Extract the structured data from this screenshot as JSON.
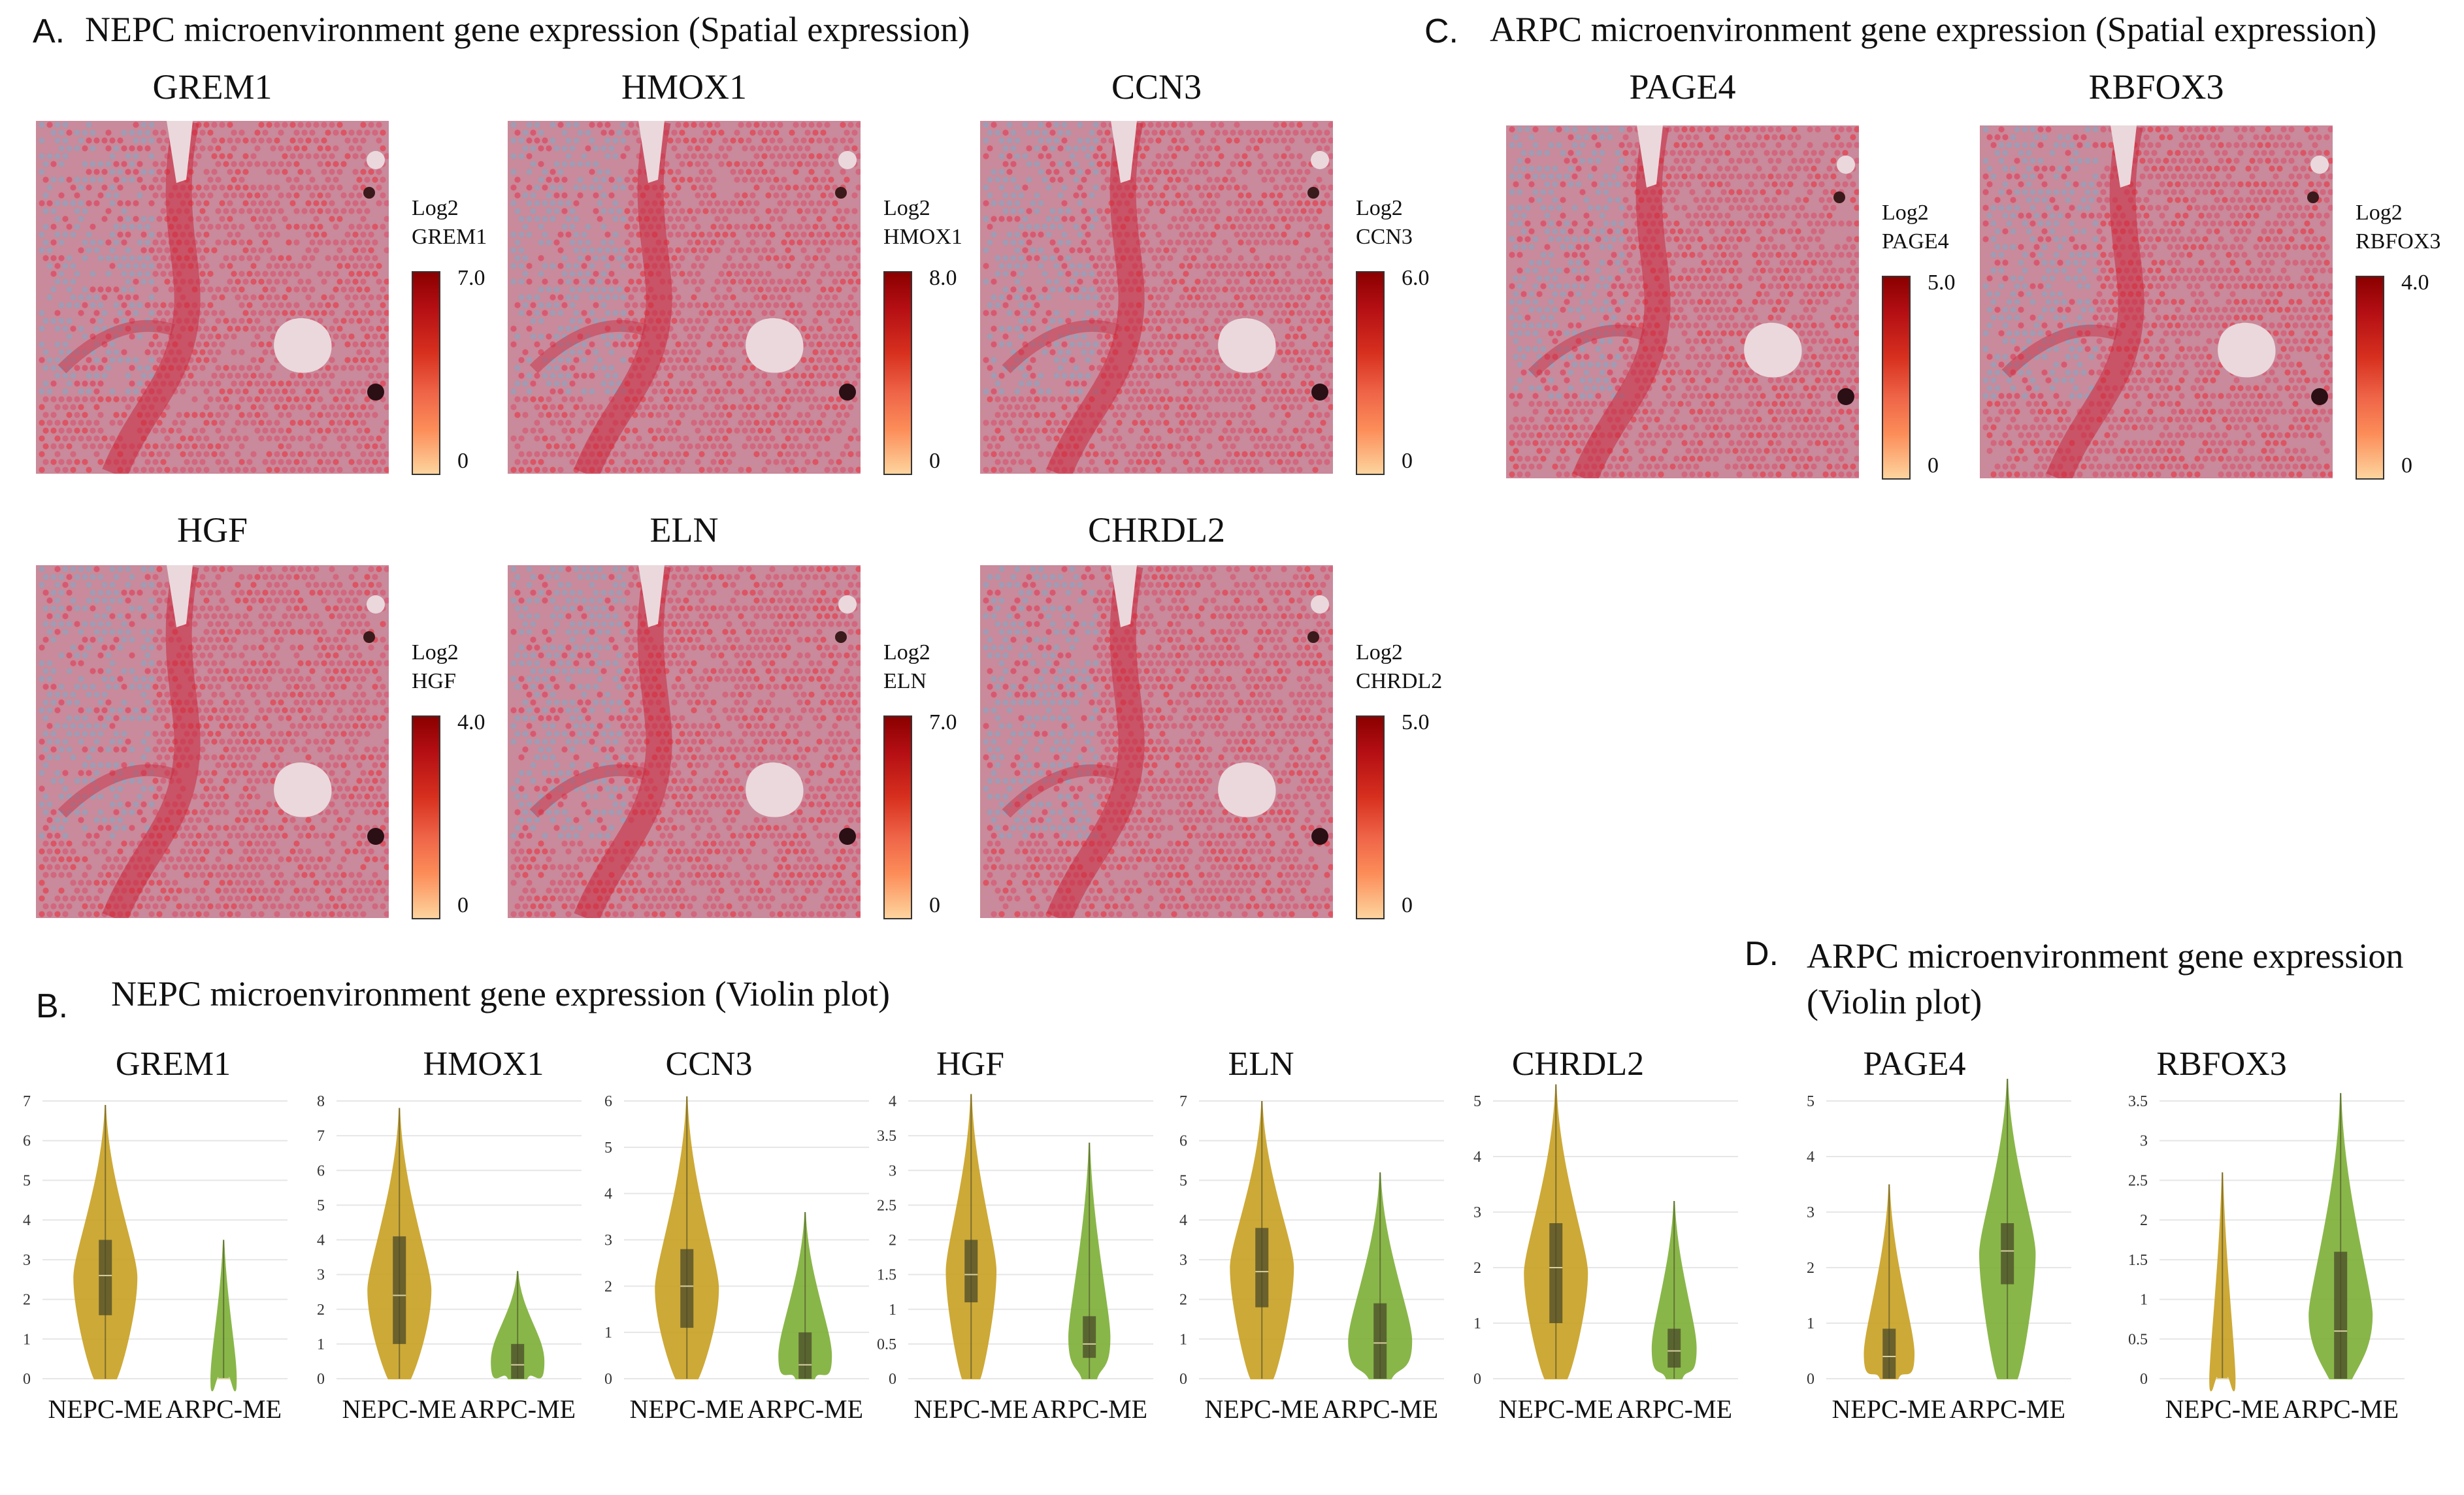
{
  "panels": {
    "A": {
      "letter": "A.",
      "title": "NEPC microenvironment gene expression (Spatial expression)"
    },
    "B": {
      "letter": "B.",
      "title": "NEPC microenvironment gene expression (Violin plot)"
    },
    "C": {
      "letter": "C.",
      "title": "ARPC microenvironment gene expression (Spatial expression)"
    },
    "D": {
      "letter": "D.",
      "title_line1": "ARPC microenvironment gene expression",
      "title_line2": "(Violin plot)"
    }
  },
  "spatial": [
    {
      "gene": "GREM1",
      "cb_title": "Log2",
      "cb_gene": "GREM1",
      "max": "7.0",
      "min": "0"
    },
    {
      "gene": "HMOX1",
      "cb_title": "Log2",
      "cb_gene": "HMOX1",
      "max": "8.0",
      "min": "0"
    },
    {
      "gene": "CCN3",
      "cb_title": "Log2",
      "cb_gene": "CCN3",
      "max": "6.0",
      "min": "0"
    },
    {
      "gene": "HGF",
      "cb_title": "Log2",
      "cb_gene": "HGF",
      "max": "4.0",
      "min": "0"
    },
    {
      "gene": "ELN",
      "cb_title": "Log2",
      "cb_gene": "ELN",
      "max": "7.0",
      "min": "0"
    },
    {
      "gene": "CHRDL2",
      "cb_title": "Log2",
      "cb_gene": "CHRDL2",
      "max": "5.0",
      "min": "0"
    },
    {
      "gene": "PAGE4",
      "cb_title": "Log2",
      "cb_gene": "PAGE4",
      "max": "5.0",
      "min": "0"
    },
    {
      "gene": "RBFOX3",
      "cb_title": "Log2",
      "cb_gene": "RBFOX3",
      "max": "4.0",
      "min": "0"
    }
  ],
  "colors": {
    "nepc": "#c9a227",
    "arpc": "#7fb03a",
    "box": "#4a4a2a"
  },
  "chart_data": [
    {
      "type": "violin",
      "title": "GREM1",
      "categories": [
        "NEPC-ME",
        "ARPC-ME"
      ],
      "ylim": [
        0,
        7
      ],
      "yticks": [
        "0",
        "1",
        "2",
        "3",
        "4",
        "5",
        "6",
        "7"
      ],
      "series": [
        {
          "name": "NEPC-ME",
          "min": 0,
          "q1": 1.6,
          "median": 2.6,
          "q3": 3.5,
          "max": 6.9
        },
        {
          "name": "ARPC-ME",
          "min": 0,
          "q1": 0,
          "median": 0,
          "q3": 0,
          "max": 3.5
        }
      ]
    },
    {
      "type": "violin",
      "title": "HMOX1",
      "categories": [
        "NEPC-ME",
        "ARPC-ME"
      ],
      "ylim": [
        0,
        8
      ],
      "yticks": [
        "0",
        "1",
        "2",
        "3",
        "4",
        "5",
        "6",
        "7",
        "8"
      ],
      "series": [
        {
          "name": "NEPC-ME",
          "min": 0,
          "q1": 1.0,
          "median": 2.4,
          "q3": 4.1,
          "max": 7.8
        },
        {
          "name": "ARPC-ME",
          "min": 0,
          "q1": 0,
          "median": 0.4,
          "q3": 1.0,
          "max": 3.1
        }
      ]
    },
    {
      "type": "violin",
      "title": "CCN3",
      "categories": [
        "NEPC-ME",
        "ARPC-ME"
      ],
      "ylim": [
        0,
        6
      ],
      "yticks": [
        "0",
        "1",
        "2",
        "3",
        "4",
        "5",
        "6"
      ],
      "series": [
        {
          "name": "NEPC-ME",
          "min": 0,
          "q1": 1.1,
          "median": 2.0,
          "q3": 2.8,
          "max": 6.1
        },
        {
          "name": "ARPC-ME",
          "min": 0,
          "q1": 0,
          "median": 0.3,
          "q3": 1.0,
          "max": 3.6
        }
      ]
    },
    {
      "type": "violin",
      "title": "HGF",
      "categories": [
        "NEPC-ME",
        "ARPC-ME"
      ],
      "ylim": [
        0,
        4
      ],
      "yticks": [
        "0",
        "0.5",
        "1",
        "1.5",
        "2",
        "2.5",
        "3",
        "3.5",
        "4"
      ],
      "series": [
        {
          "name": "NEPC-ME",
          "min": 0,
          "q1": 1.1,
          "median": 1.5,
          "q3": 2.0,
          "max": 4.1
        },
        {
          "name": "ARPC-ME",
          "min": 0,
          "q1": 0.3,
          "median": 0.5,
          "q3": 0.9,
          "max": 3.4
        }
      ]
    },
    {
      "type": "violin",
      "title": "ELN",
      "categories": [
        "NEPC-ME",
        "ARPC-ME"
      ],
      "ylim": [
        0,
        7
      ],
      "yticks": [
        "0",
        "1",
        "2",
        "3",
        "4",
        "5",
        "6",
        "7"
      ],
      "series": [
        {
          "name": "NEPC-ME",
          "min": 0,
          "q1": 1.8,
          "median": 2.7,
          "q3": 3.8,
          "max": 7.0
        },
        {
          "name": "ARPC-ME",
          "min": 0,
          "q1": 0,
          "median": 0.9,
          "q3": 1.9,
          "max": 5.2
        }
      ]
    },
    {
      "type": "violin",
      "title": "CHRDL2",
      "categories": [
        "NEPC-ME",
        "ARPC-ME"
      ],
      "ylim": [
        0,
        5
      ],
      "yticks": [
        "0",
        "1",
        "2",
        "3",
        "4",
        "5"
      ],
      "series": [
        {
          "name": "NEPC-ME",
          "min": 0,
          "q1": 1.0,
          "median": 2.0,
          "q3": 2.8,
          "max": 5.3
        },
        {
          "name": "ARPC-ME",
          "min": 0,
          "q1": 0.2,
          "median": 0.5,
          "q3": 0.9,
          "max": 3.2
        }
      ]
    },
    {
      "type": "violin",
      "title": "PAGE4",
      "categories": [
        "NEPC-ME",
        "ARPC-ME"
      ],
      "ylim": [
        0,
        5
      ],
      "yticks": [
        "0",
        "1",
        "2",
        "3",
        "4",
        "5"
      ],
      "series": [
        {
          "name": "NEPC-ME",
          "min": 0,
          "q1": 0,
          "median": 0.4,
          "q3": 0.9,
          "max": 3.5
        },
        {
          "name": "ARPC-ME",
          "min": 0,
          "q1": 1.7,
          "median": 2.3,
          "q3": 2.8,
          "max": 5.4
        }
      ]
    },
    {
      "type": "violin",
      "title": "RBFOX3",
      "categories": [
        "NEPC-ME",
        "ARPC-ME"
      ],
      "ylim": [
        0,
        3.5
      ],
      "yticks": [
        "0",
        "0.5",
        "1",
        "1.5",
        "2",
        "2.5",
        "3",
        "3.5"
      ],
      "series": [
        {
          "name": "NEPC-ME",
          "min": 0,
          "q1": 0,
          "median": 0,
          "q3": 0,
          "max": 2.6
        },
        {
          "name": "ARPC-ME",
          "min": 0,
          "q1": 0,
          "median": 0.6,
          "q3": 1.6,
          "max": 3.6
        }
      ]
    }
  ]
}
